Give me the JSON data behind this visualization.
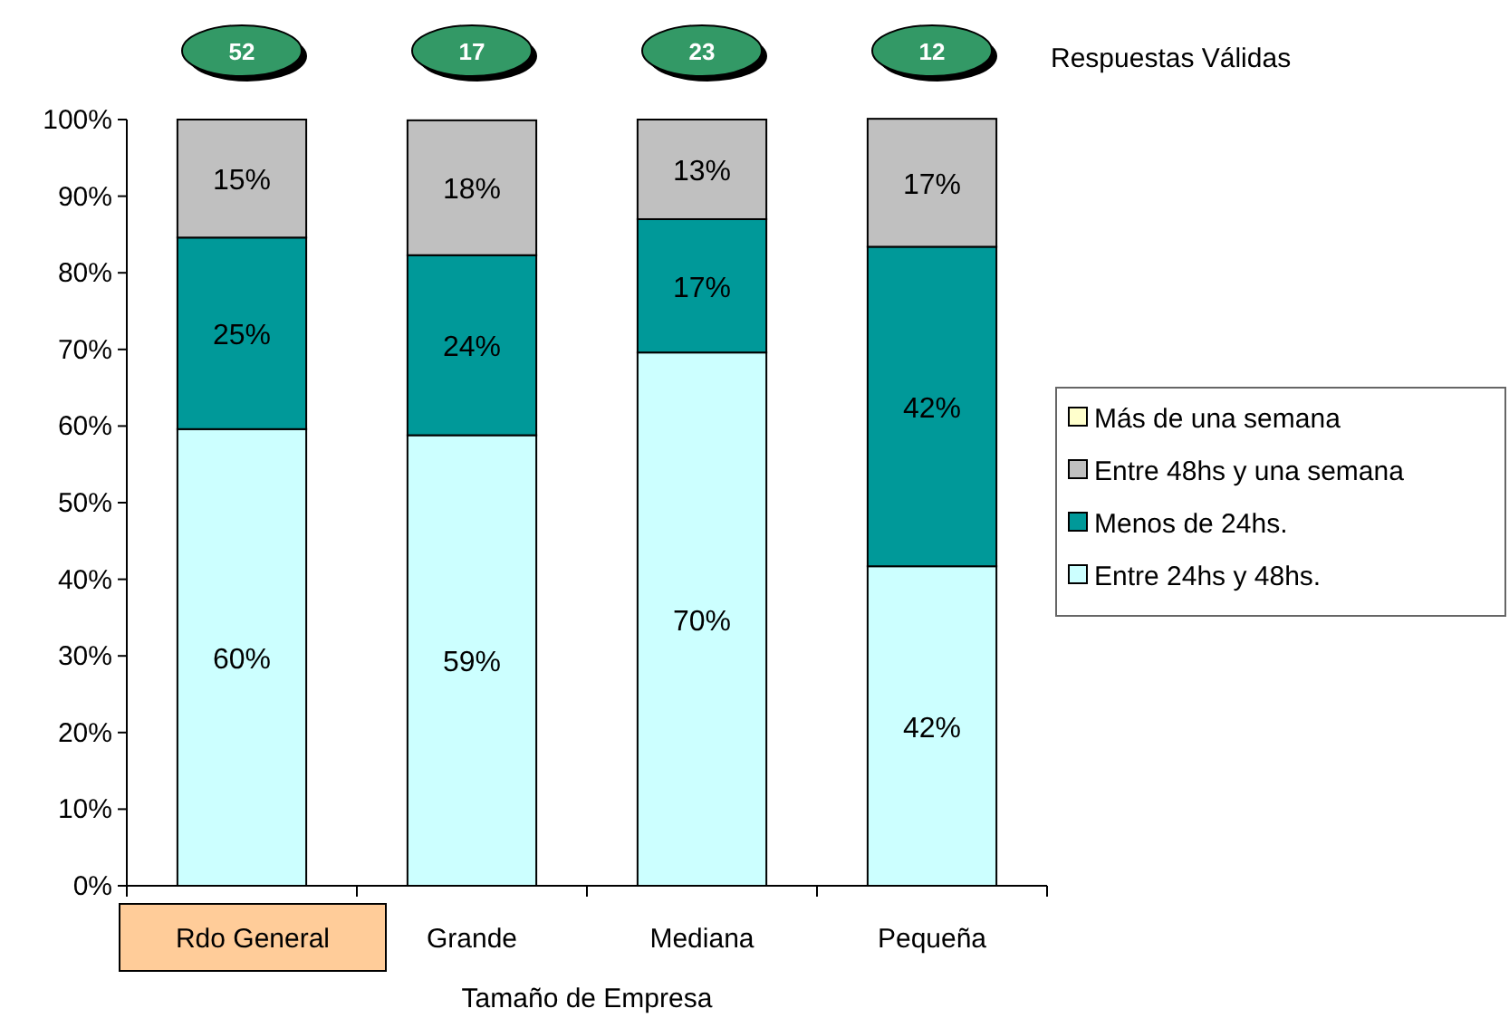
{
  "chart_data": {
    "type": "bar",
    "stacked": true,
    "xlabel": "Tamaño de Empresa",
    "categories": [
      "Rdo General",
      "Grande",
      "Mediana",
      "Pequeña"
    ],
    "series": [
      {
        "name": "Entre 24hs y 48hs.",
        "color": "#ccffff",
        "values": [
          59.6,
          58.8,
          69.6,
          41.7
        ],
        "value_labels": [
          "60%",
          "59%",
          "70%",
          "42%"
        ]
      },
      {
        "name": "Menos de 24hs.",
        "color": "#009999",
        "values": [
          25.0,
          23.5,
          17.4,
          41.7
        ],
        "value_labels": [
          "25%",
          "24%",
          "17%",
          "42%"
        ]
      },
      {
        "name": "Entre 48hs y una semana",
        "color": "#c0c0c0",
        "values": [
          15.4,
          17.6,
          13.0,
          16.7
        ],
        "value_labels": [
          "15%",
          "18%",
          "13%",
          "17%"
        ]
      },
      {
        "name": "Más de una semana",
        "color": "#ffffcc",
        "values": [
          0,
          0,
          0,
          0
        ],
        "value_labels": [
          null,
          null,
          null,
          null
        ]
      }
    ],
    "ylim": [
      0,
      100
    ],
    "yticks": [
      {
        "value": 0,
        "label": "0%"
      },
      {
        "value": 10,
        "label": "10%"
      },
      {
        "value": 20,
        "label": "20%"
      },
      {
        "value": 30,
        "label": "30%"
      },
      {
        "value": 40,
        "label": "40%"
      },
      {
        "value": 50,
        "label": "50%"
      },
      {
        "value": 60,
        "label": "60%"
      },
      {
        "value": 70,
        "label": "70%"
      },
      {
        "value": 80,
        "label": "80%"
      },
      {
        "value": 90,
        "label": "90%"
      },
      {
        "value": 100,
        "label": "100%"
      }
    ],
    "grid": false,
    "legend": "right",
    "annotations": [
      "52",
      "17",
      "23",
      "12",
      "Respuestas Válidas"
    ]
  }
}
